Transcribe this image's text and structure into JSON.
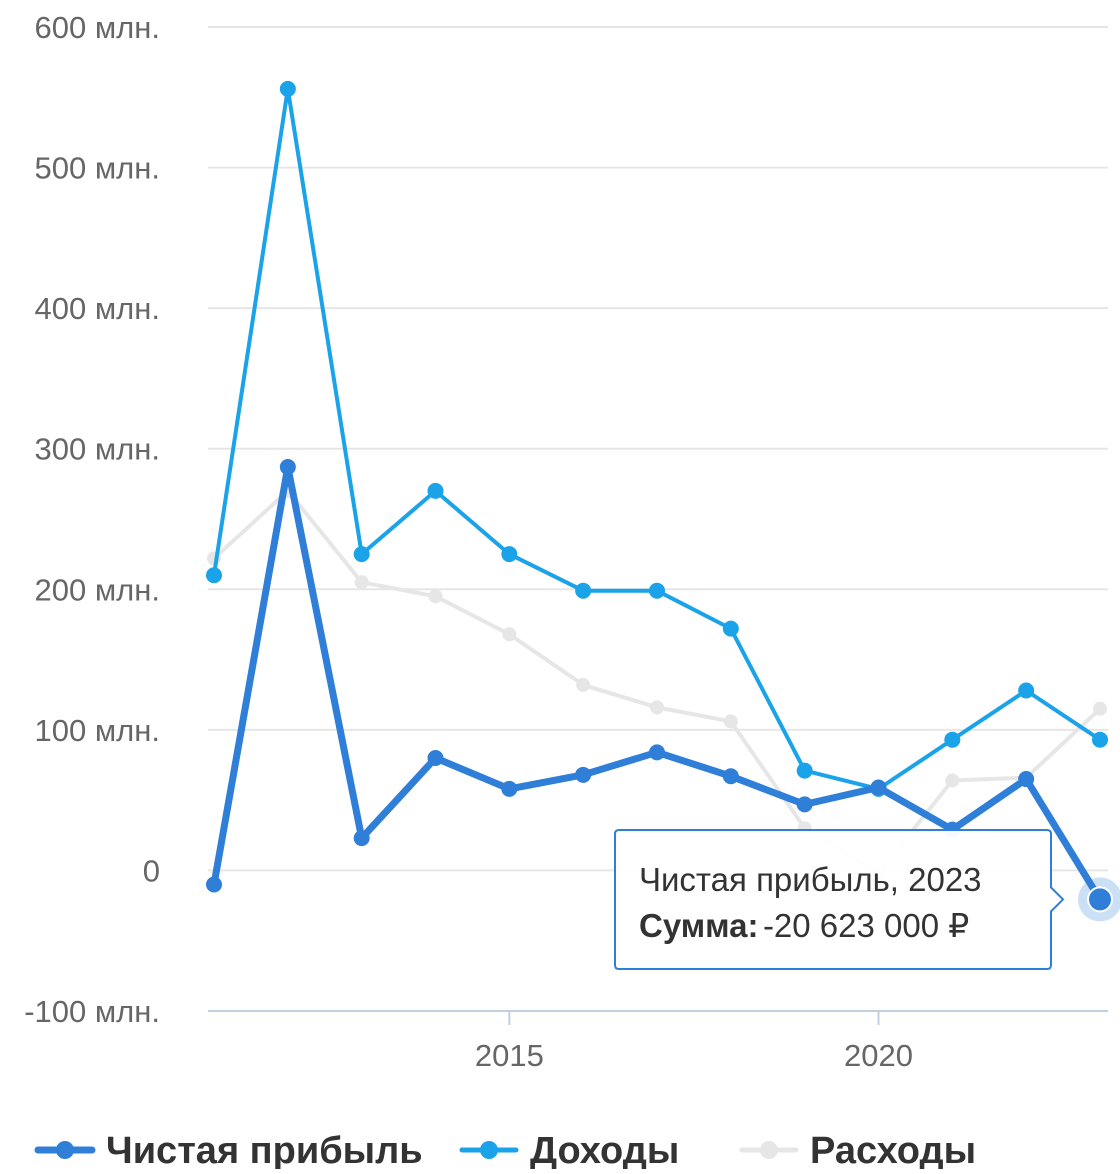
{
  "chart_data": {
    "type": "line",
    "x": [
      2011,
      2012,
      2013,
      2014,
      2015,
      2016,
      2017,
      2018,
      2019,
      2020,
      2021,
      2022,
      2023
    ],
    "xlim": [
      2011,
      2023
    ],
    "x_ticks": [
      2015,
      2020
    ],
    "x_tick_labels": [
      "2015",
      "2020"
    ],
    "ylim": [
      -100,
      600
    ],
    "y_ticks": [
      -100,
      0,
      100,
      200,
      300,
      400,
      500,
      600
    ],
    "y_tick_labels": [
      "-100 млн.",
      "0",
      "100 млн.",
      "200 млн.",
      "300 млн.",
      "400 млн.",
      "500 млн.",
      "600 млн."
    ],
    "grid": true,
    "legend_position": "bottom",
    "series": [
      {
        "name": "Чистая прибыль",
        "color": "#2f7ed8",
        "values": [
          -10,
          287,
          23,
          80,
          58,
          68,
          84,
          67,
          47,
          59,
          29,
          65,
          -20.623
        ]
      },
      {
        "name": "Доходы",
        "color": "#1aa3e8",
        "values": [
          210,
          556,
          225,
          270,
          225,
          199,
          199,
          172,
          71,
          58,
          93,
          128,
          93
        ]
      },
      {
        "name": "Расходы",
        "color": "#e6e6e6",
        "values": [
          222,
          270,
          205,
          195,
          168,
          132,
          116,
          106,
          30,
          -2,
          64,
          66,
          115
        ]
      }
    ],
    "tooltip": {
      "title": "Чистая прибыль, 2023",
      "label": "Сумма:",
      "value": "-20 623 000 ₽",
      "series_index": 0,
      "point_index": 12
    }
  }
}
